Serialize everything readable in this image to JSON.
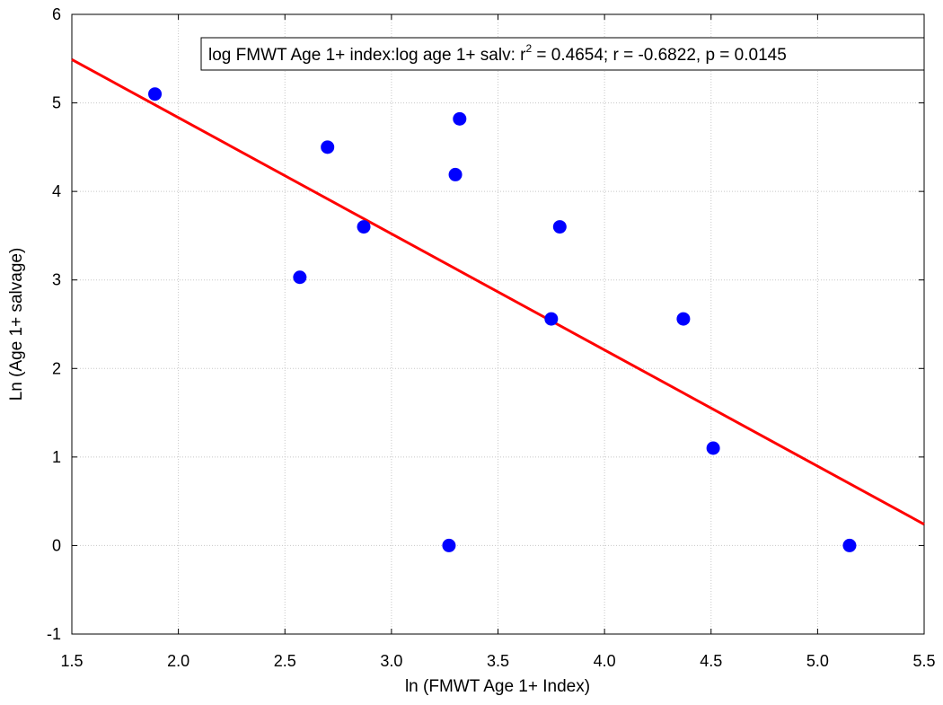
{
  "chart_data": {
    "type": "scatter",
    "title": "",
    "xlabel": "ln (FMWT Age 1+ Index)",
    "ylabel": "Ln (Age 1+ salvage)",
    "xlim": [
      1.5,
      5.5
    ],
    "ylim": [
      -1,
      6
    ],
    "xticks": [
      "1.5",
      "2.0",
      "2.5",
      "3.0",
      "3.5",
      "4.0",
      "4.5",
      "5.0",
      "5.5"
    ],
    "yticks": [
      "-1",
      "0",
      "1",
      "2",
      "3",
      "4",
      "5",
      "6"
    ],
    "grid": true,
    "points": [
      {
        "x": 1.89,
        "y": 5.1
      },
      {
        "x": 2.57,
        "y": 3.03
      },
      {
        "x": 2.7,
        "y": 4.5
      },
      {
        "x": 2.87,
        "y": 3.6
      },
      {
        "x": 3.27,
        "y": 0.0
      },
      {
        "x": 3.3,
        "y": 4.19
      },
      {
        "x": 3.32,
        "y": 4.82
      },
      {
        "x": 3.75,
        "y": 2.56
      },
      {
        "x": 3.79,
        "y": 3.6
      },
      {
        "x": 4.37,
        "y": 2.56
      },
      {
        "x": 4.51,
        "y": 1.1
      },
      {
        "x": 5.15,
        "y": 0.0
      }
    ],
    "regression_line": {
      "x": [
        1.5,
        5.5
      ],
      "y": [
        5.49,
        0.24
      ]
    },
    "annotation": {
      "prefix": "log FMWT Age 1+ index:log age 1+ salv:  r",
      "superscript": "2",
      "suffix": " = 0.4654;  r = -0.6822, p = 0.0145"
    },
    "colors": {
      "points": "#0000ff",
      "line": "#ff0000",
      "grid": "#c8c8c8",
      "axis": "#000000"
    }
  }
}
